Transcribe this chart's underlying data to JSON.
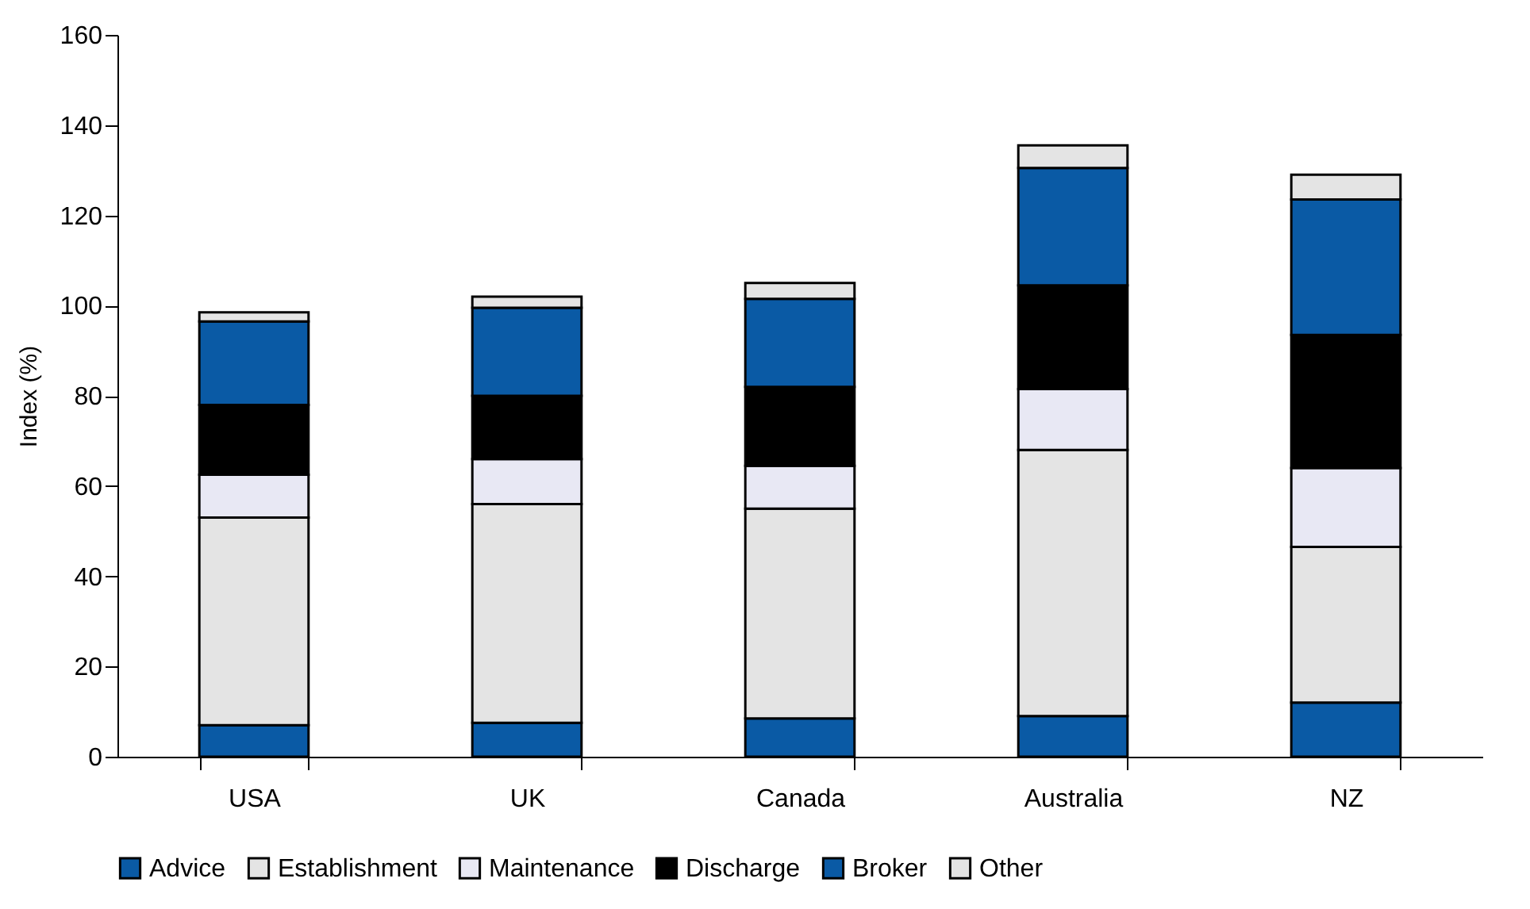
{
  "chart_data": {
    "type": "bar",
    "stacked": true,
    "ylabel": "Index (%)",
    "categories": [
      "USA",
      "UK",
      "Canada",
      "Australia",
      "NZ"
    ],
    "series": [
      {
        "name": "Advice",
        "color": "#0a5aa5",
        "values": [
          7,
          7.5,
          8.5,
          9,
          12
        ]
      },
      {
        "name": "Establishment",
        "color": "#e4e4e4",
        "values": [
          46,
          48.5,
          46.5,
          59,
          34.5
        ]
      },
      {
        "name": "Maintenance",
        "color": "#e8e8f4",
        "values": [
          9.5,
          10,
          9.5,
          13.5,
          17.5
        ]
      },
      {
        "name": "Discharge",
        "color": "#000000",
        "values": [
          15.5,
          14,
          17.5,
          23,
          29.5
        ]
      },
      {
        "name": "Broker",
        "color": "#0a5aa5",
        "values": [
          18.5,
          19.5,
          19.5,
          26,
          30
        ]
      },
      {
        "name": "Other",
        "color": "#e4e4e4",
        "values": [
          2,
          2.5,
          3.5,
          5,
          5.5
        ]
      }
    ],
    "ylim": [
      0,
      160
    ],
    "yticks": [
      0,
      20,
      40,
      60,
      80,
      100,
      120,
      140,
      160
    ],
    "grid": false,
    "legend": "bottom"
  }
}
